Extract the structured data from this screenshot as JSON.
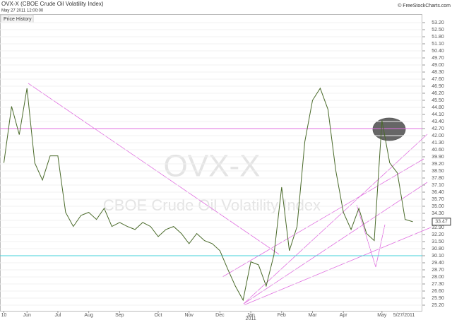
{
  "chart_data": {
    "type": "line",
    "title": "OVX-X (CBOE Crude Oil Volatility Index)",
    "subtitle": "May 27 2011 12:00:00",
    "source": "© FreeStockCharts.com",
    "tab": "Price History",
    "watermark": "OVX-X",
    "watermark_name": "CBOE Crude Oil Volatility Index",
    "year_label": "2011",
    "last_date": "5/27/2011",
    "last_value": 33.47,
    "categories": [
      "10",
      null,
      null,
      "Jun",
      null,
      null,
      null,
      "Jul",
      null,
      null,
      null,
      "Aug",
      null,
      null,
      null,
      "Sep",
      null,
      null,
      null,
      null,
      "Oct",
      null,
      null,
      null,
      "Nov",
      null,
      null,
      null,
      "Dec",
      null,
      null,
      null,
      "Jan",
      null,
      null,
      null,
      "Feb",
      null,
      null,
      null,
      "Mar",
      null,
      null,
      null,
      "Apr",
      null,
      null,
      null,
      null,
      "May",
      null,
      null,
      null,
      null
    ],
    "series": [
      {
        "name": "OVX-X",
        "color": "#4a6a2a",
        "values": [
          39.3,
          44.9,
          42.1,
          46.7,
          39.3,
          37.6,
          40.0,
          40.0,
          34.4,
          33.0,
          34.1,
          34.4,
          33.7,
          34.8,
          33.0,
          33.4,
          33.0,
          32.7,
          33.4,
          33.0,
          32.0,
          32.7,
          33.0,
          32.3,
          31.3,
          32.3,
          31.6,
          31.3,
          30.6,
          28.8,
          27.1,
          25.7,
          29.5,
          29.2,
          27.1,
          30.2,
          36.9,
          30.6,
          33.0,
          41.4,
          45.5,
          46.7,
          44.6,
          38.6,
          34.4,
          32.7,
          34.8,
          32.3,
          31.6,
          43.5,
          39.3,
          38.3,
          33.7,
          33.47
        ]
      }
    ],
    "hlines": [
      {
        "value": 42.7,
        "color": "#e070e0"
      },
      {
        "value": 30.1,
        "color": "#40d0d8"
      }
    ],
    "ylim": [
      24.64,
      54.04
    ],
    "yticks": [
      {
        "value": 25.2,
        "label": "25.20"
      },
      {
        "value": 25.9,
        "label": "25.90"
      },
      {
        "value": 26.6,
        "label": "26.60"
      },
      {
        "value": 27.3,
        "label": "27.30"
      },
      {
        "value": 28.0,
        "label": "28.00"
      },
      {
        "value": 28.7,
        "label": "28.70"
      },
      {
        "value": 29.4,
        "label": "29.40"
      },
      {
        "value": 30.1,
        "label": "30.10"
      },
      {
        "value": 30.8,
        "label": "30.80"
      },
      {
        "value": 31.5,
        "label": "31.50"
      },
      {
        "value": 32.2,
        "label": "32.20"
      },
      {
        "value": 32.9,
        "label": "32.90"
      },
      {
        "value": 33.6,
        "label": "33.60"
      },
      {
        "value": 34.3,
        "label": "34.30"
      },
      {
        "value": 35.0,
        "label": "35.00"
      },
      {
        "value": 35.7,
        "label": "35.70"
      },
      {
        "value": 36.4,
        "label": "36.40"
      },
      {
        "value": 37.1,
        "label": "37.10"
      },
      {
        "value": 37.8,
        "label": "37.80"
      },
      {
        "value": 38.5,
        "label": "38.50"
      },
      {
        "value": 39.2,
        "label": "39.20"
      },
      {
        "value": 39.9,
        "label": "39.90"
      },
      {
        "value": 40.6,
        "label": "40.60"
      },
      {
        "value": 41.3,
        "label": "41.30"
      },
      {
        "value": 42.0,
        "label": "42.00"
      },
      {
        "value": 42.7,
        "label": "42.70"
      },
      {
        "value": 43.4,
        "label": "43.40"
      },
      {
        "value": 44.1,
        "label": "44.10"
      },
      {
        "value": 44.8,
        "label": "44.80"
      },
      {
        "value": 45.5,
        "label": "45.50"
      },
      {
        "value": 46.2,
        "label": "46.20"
      },
      {
        "value": 46.9,
        "label": "46.90"
      },
      {
        "value": 47.6,
        "label": "47.60"
      },
      {
        "value": 48.3,
        "label": "48.30"
      },
      {
        "value": 49.0,
        "label": "49.00"
      },
      {
        "value": 49.7,
        "label": "49.70"
      },
      {
        "value": 50.4,
        "label": "50.40"
      },
      {
        "value": 51.1,
        "label": "51.10"
      },
      {
        "value": 51.8,
        "label": "51.80"
      },
      {
        "value": 52.5,
        "label": "52.50"
      },
      {
        "value": 53.2,
        "label": "53.20"
      }
    ],
    "grid": true
  }
}
